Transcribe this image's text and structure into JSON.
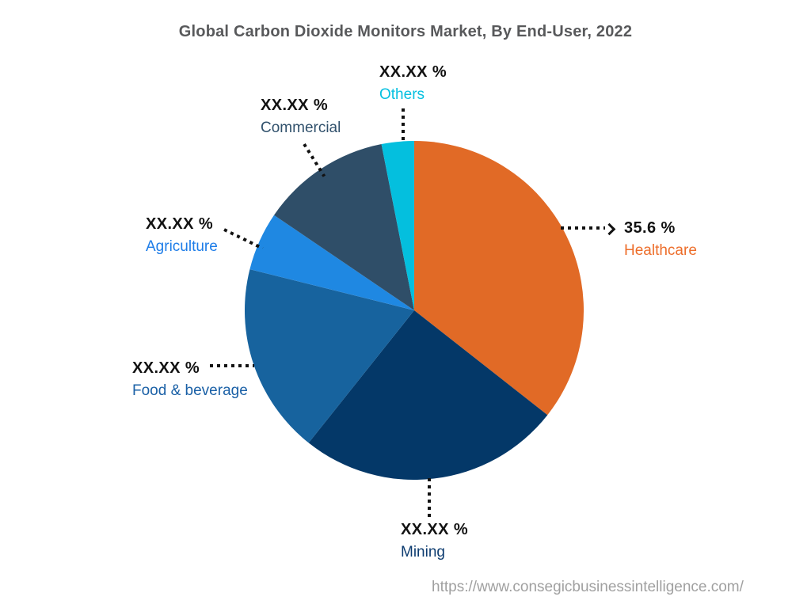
{
  "title": "Global Carbon Dioxide Monitors Market, By End-User, 2022",
  "footer": {
    "source_url": "https://www.consegicbusinessintelligence.com/"
  },
  "colors": {
    "background": "#FFFFFF",
    "title_text": "#58595B",
    "value_text": "#121212",
    "leader_line": "#121212",
    "url_text": "#A0A0A0"
  },
  "chart_data": {
    "type": "pie",
    "title": "Global Carbon Dioxide Monitors Market, By End-User, 2022",
    "unit": "%",
    "direction": "clockwise",
    "start_angle_deg": 0,
    "legend_position": "none",
    "slices": [
      {
        "name": "Healthcare",
        "value": 35.6,
        "value_label": "35.6 %",
        "masked": false,
        "color": "#E16A26",
        "label_color": "#ED6E2B"
      },
      {
        "name": "Mining",
        "value": 25.1,
        "value_label": "XX.XX %",
        "masked": true,
        "color": "#043868",
        "label_color": "#0D3C70"
      },
      {
        "name": "Food & beverage",
        "value": 18.2,
        "value_label": "XX.XX %",
        "masked": true,
        "color": "#17639E",
        "label_color": "#1A60A6"
      },
      {
        "name": "Agriculture",
        "value": 5.6,
        "value_label": "XX.XX %",
        "masked": true,
        "color": "#1F88E2",
        "label_color": "#1E7DE8"
      },
      {
        "name": "Commercial",
        "value": 12.4,
        "value_label": "XX.XX %",
        "masked": true,
        "color": "#2F4E68",
        "label_color": "#31516C"
      },
      {
        "name": "Others",
        "value": 3.1,
        "value_label": "XX.XX %",
        "masked": true,
        "color": "#04BFDE",
        "label_color": "#06C0E0"
      }
    ]
  }
}
